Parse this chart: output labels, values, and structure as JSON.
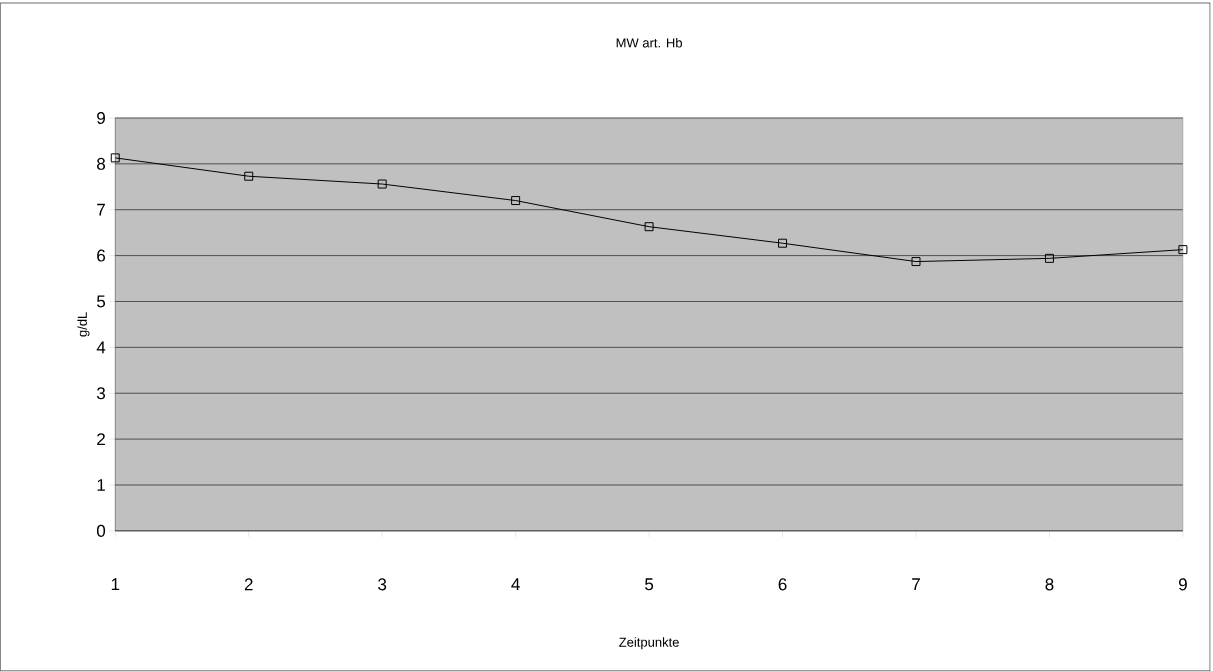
{
  "chart_data": {
    "type": "line",
    "title": "MW art. Hb",
    "xlabel": "Zeitpunkte",
    "ylabel": "g/dL",
    "x": [
      1,
      2,
      3,
      4,
      5,
      6,
      7,
      8,
      9
    ],
    "series": [
      {
        "color": "#000000",
        "values": [
          8.13,
          7.73,
          7.56,
          7.2,
          6.63,
          6.27,
          5.87,
          5.94,
          6.13
        ]
      }
    ],
    "xlim": [
      1,
      9
    ],
    "xticks": [
      1,
      2,
      3,
      4,
      5,
      6,
      7,
      8,
      9
    ],
    "ylim": [
      0,
      9
    ],
    "yticks": [
      0,
      1,
      2,
      3,
      4,
      5,
      6,
      7,
      8,
      9
    ],
    "grid": "y",
    "marker": "square",
    "line_style": "solid"
  }
}
